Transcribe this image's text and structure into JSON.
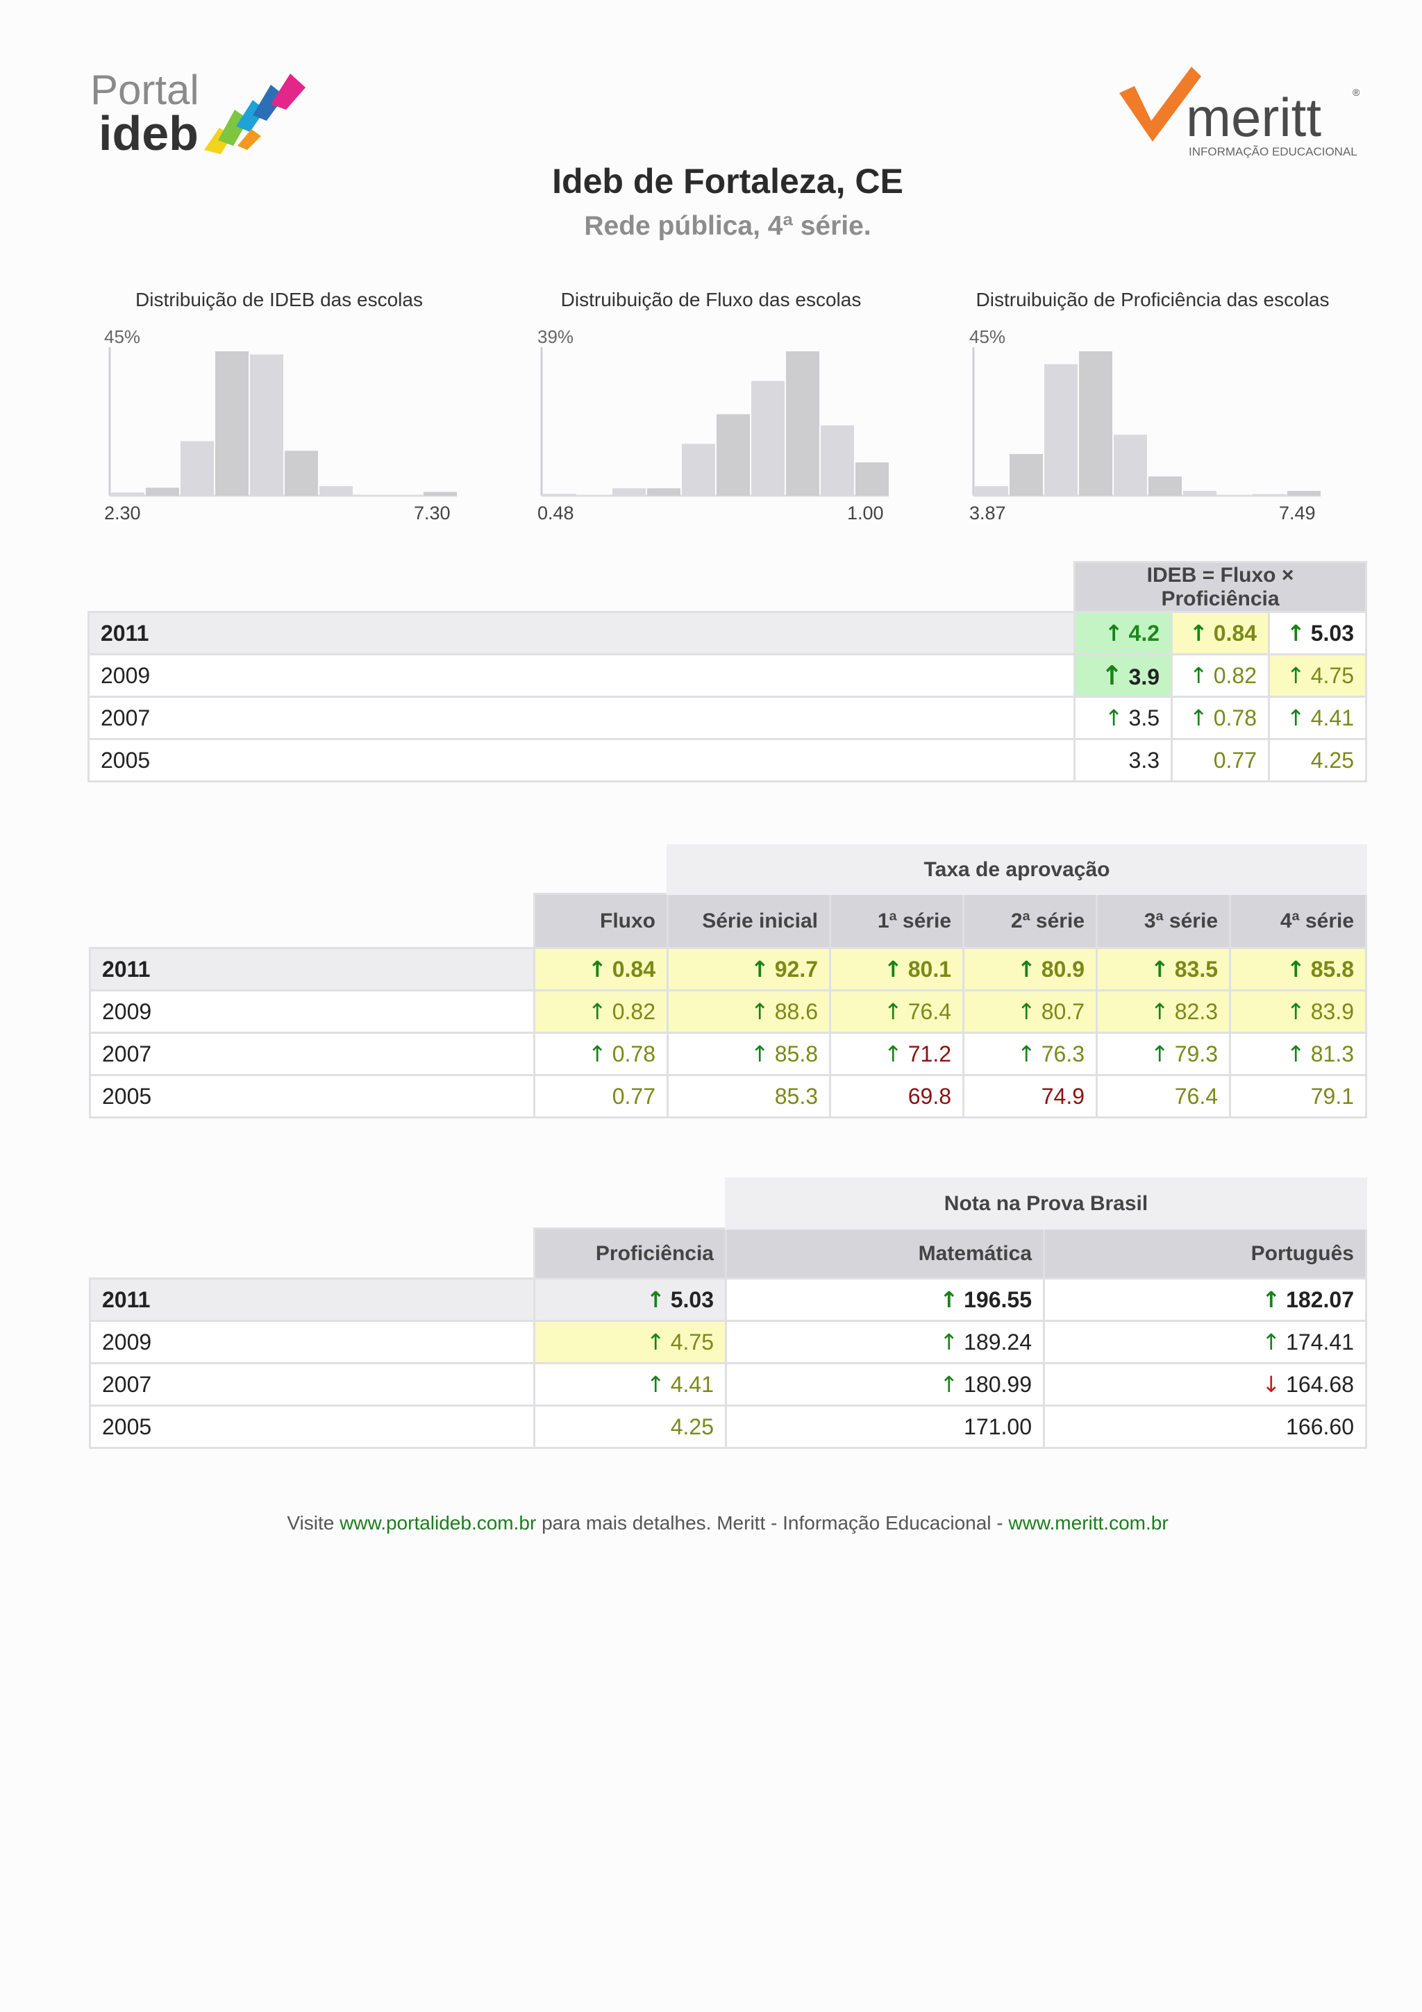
{
  "logos": {
    "portal_line1": "Portal",
    "portal_line2": "ideb",
    "meritt_name": "meritt",
    "meritt_reg": "®",
    "meritt_tagline": "INFORMAÇÃO EDUCACIONAL"
  },
  "header": {
    "title": "Ideb de Fortaleza, CE",
    "subtitle": "Rede pública, 4ª série."
  },
  "histograms": [
    {
      "title": "Distribuição de IDEB das escolas",
      "max_label": "45%",
      "min_x": "2.30",
      "max_x": "7.30",
      "bars_pct": [
        1,
        2.5,
        17,
        45,
        44,
        14,
        3,
        0,
        0,
        1.2
      ],
      "color": "#cfcfd3"
    },
    {
      "title": "Distruibuição de Fluxo das escolas",
      "max_label": "39%",
      "min_x": "0.48",
      "max_x": "1.00",
      "bars_pct": [
        0.5,
        0,
        2,
        2,
        14,
        22,
        31,
        39,
        19,
        9
      ],
      "color": "#cfcfd3"
    },
    {
      "title": "Distruibuição de Proficiência das escolas",
      "max_label": "45%",
      "min_x": "3.87",
      "max_x": "7.49",
      "bars_pct": [
        3,
        13,
        41,
        45,
        19,
        6,
        1.5,
        0,
        0.5,
        1.5
      ],
      "color": "#cfcfd3"
    }
  ],
  "table_ideb": {
    "header": "IDEB = Fluxo × Proficiência",
    "rows": [
      {
        "year": "2011",
        "ideb": "4.2",
        "fluxo": "0.84",
        "prof": "5.03"
      },
      {
        "year": "2009",
        "ideb": "3.9",
        "fluxo": "0.82",
        "prof": "4.75"
      },
      {
        "year": "2007",
        "ideb": "3.5",
        "fluxo": "0.78",
        "prof": "4.41"
      },
      {
        "year": "2005",
        "ideb": "3.3",
        "fluxo": "0.77",
        "prof": "4.25"
      }
    ]
  },
  "table_aprovacao": {
    "group_header": "Taxa de aprovação",
    "columns": [
      "Fluxo",
      "Série inicial",
      "1ª série",
      "2ª série",
      "3ª série",
      "4ª série"
    ],
    "rows": [
      {
        "year": "2011",
        "values": [
          "0.84",
          "92.7",
          "80.1",
          "80.9",
          "83.5",
          "85.8"
        ]
      },
      {
        "year": "2009",
        "values": [
          "0.82",
          "88.6",
          "76.4",
          "80.7",
          "82.3",
          "83.9"
        ]
      },
      {
        "year": "2007",
        "values": [
          "0.78",
          "85.8",
          "71.2",
          "76.3",
          "79.3",
          "81.3"
        ]
      },
      {
        "year": "2005",
        "values": [
          "0.77",
          "85.3",
          "69.8",
          "74.9",
          "76.4",
          "79.1"
        ]
      }
    ]
  },
  "table_prova": {
    "group_header": "Nota na Prova Brasil",
    "columns": [
      "Proficiência",
      "Matemática",
      "Português"
    ],
    "rows": [
      {
        "year": "2011",
        "values": [
          "5.03",
          "196.55",
          "182.07"
        ]
      },
      {
        "year": "2009",
        "values": [
          "4.75",
          "189.24",
          "174.41"
        ]
      },
      {
        "year": "2007",
        "values": [
          "4.41",
          "180.99",
          "164.68"
        ]
      },
      {
        "year": "2005",
        "values": [
          "4.25",
          "171.00",
          "166.60"
        ]
      }
    ]
  },
  "footer": {
    "text1": "Visite ",
    "link1": "www.portalideb.com.br",
    "text2": " para mais detalhes. Meritt - Informação Educacional - ",
    "link2": "www.meritt.com.br"
  },
  "icons": {
    "up": "arrow-up-icon",
    "down": "arrow-down-icon"
  },
  "colors": {
    "green_bg": "#c4f4c4",
    "yellow_bg": "#fbfbc0",
    "header_bg": "#d6d5d9",
    "arrow_up": "#188218",
    "arrow_down": "#c21e1e"
  }
}
